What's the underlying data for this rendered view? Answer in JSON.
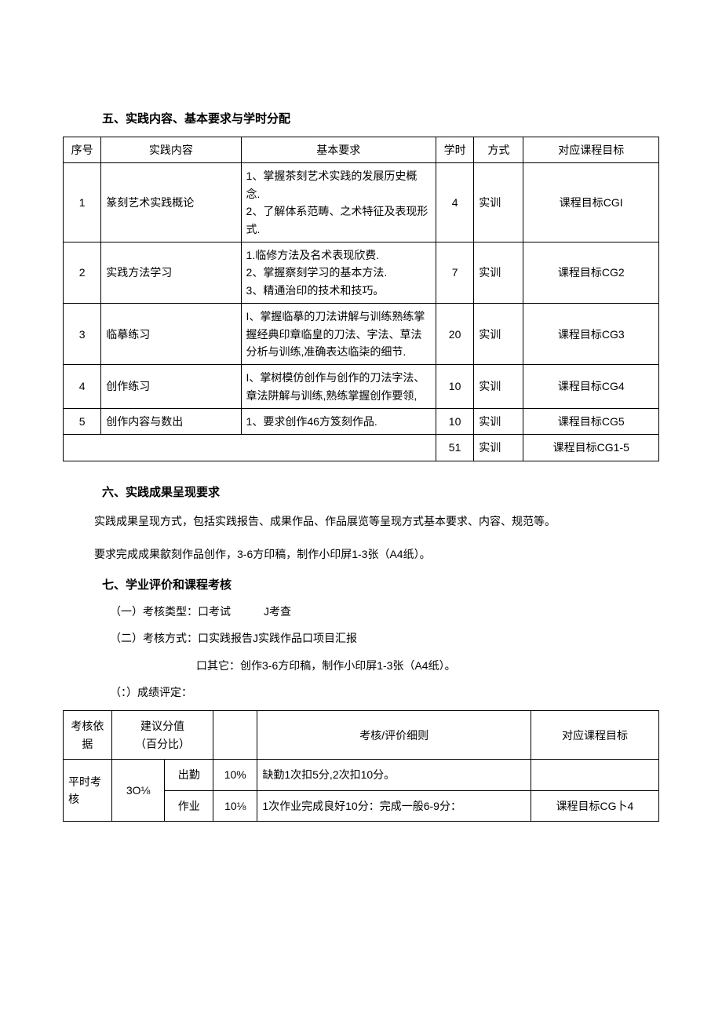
{
  "section5": {
    "heading": "五、实践内容、基本要求与学时分配",
    "table": {
      "columns": [
        "序号",
        "实践内容",
        "基本要求",
        "学时",
        "方式",
        "对应课程目标"
      ],
      "rows": [
        {
          "no": "1",
          "content": "篆刻艺术实践概论",
          "req": "1、掌握茶刻艺术实践的发展历史概念.\n2、了解体系范畴、之术特征及表现形式.",
          "hours": "4",
          "mode": "实训",
          "goal": "课程目标CGI"
        },
        {
          "no": "2",
          "content": "实践方法学习",
          "req": "1.临修方法及名术表现欣费.\n2、掌握察刻学习的基本方法.\n3、精通治印的技术和技巧。",
          "hours": "7",
          "mode": "实训",
          "goal": "课程目标CG2"
        },
        {
          "no": "3",
          "content": "临摹练习",
          "req": "I、掌握临摹的刀法讲解与训练熟练掌握经典印章临皇的刀法、字法、草法分析与训练,准确表达临柒的细节.",
          "hours": "20",
          "mode": "实训",
          "goal": "课程目标CG3"
        },
        {
          "no": "4",
          "content": "创作练习",
          "req": "I、掌树模仿创作与创作的刀法字法、章法阱解与训练,熟练掌握创作要领,",
          "hours": "10",
          "mode": "实训",
          "goal": "课程目标CG4"
        },
        {
          "no": "5",
          "content": "创作内容与数出",
          "req": "1、要求创作46方笈刻作品.",
          "hours": "10",
          "mode": "实训",
          "goal": "课程目标CG5"
        }
      ],
      "totals": {
        "hours": "51",
        "mode": "实训",
        "goal": "课程目标CG1-5"
      }
    }
  },
  "section6": {
    "heading": "六、实践成果呈现要求",
    "p1": "实践成果呈现方式，包括实践报告、成果作品、作品展览等呈现方式基本要求、内容、规范等。",
    "p2": "要求完成成果歙刻作品创作，3-6方印稿，制作小印屏1-3张（A4纸）。"
  },
  "section7": {
    "heading": "七、学业评价和课程考核",
    "item1": "（一）考核类型：口考试   J考查",
    "item2": "（二）考核方式：口实践报告J实践作品口项目汇报",
    "item2b": "口其它：创作3-6方印稿，制作小印屏1-3张（A4纸）。",
    "item3": "（：）成绩评定：",
    "table": {
      "columns": [
        "考核依据",
        "建议分值（百分比）",
        "考核/评价细则",
        "对应课程目标"
      ],
      "col2_label_a": "建议分值",
      "col2_label_b": "（百分比）",
      "rows": [
        {
          "basis": "平时考核",
          "weight": "3O⅛",
          "sub": "出勤",
          "pct": "10%",
          "rule": "缺勤1次扣5分,2次扣10分。",
          "goal": ""
        },
        {
          "basis": "",
          "weight": "",
          "sub": "作业",
          "pct": "10⅛",
          "rule": "1次作业完成良好10分：完成一般6-9分：",
          "goal": "课程目标CG卜4"
        }
      ]
    }
  }
}
